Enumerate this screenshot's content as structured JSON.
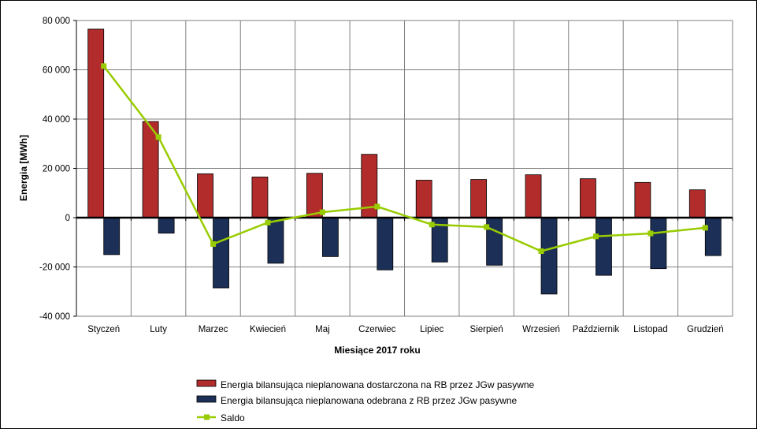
{
  "colors": {
    "delivered": "#B22C2C",
    "received": "#1B2F57",
    "saldo": "#99CC00",
    "grid": "#808080"
  },
  "chart_data": {
    "type": "bar",
    "title": "",
    "xlabel": "Miesiące 2017  roku",
    "ylabel": "Energia  [MWh]",
    "ylim": [
      -40000,
      80000
    ],
    "ytick_values": [
      80000,
      60000,
      40000,
      20000,
      0,
      -20000,
      -40000
    ],
    "ytick_labels": [
      "80 000",
      "60 000",
      "40 000",
      "20 000",
      "0",
      "-20 000",
      "-40 000"
    ],
    "grid": true,
    "legend_position": "bottom",
    "categories": [
      "Styczeń",
      "Luty",
      "Marzec",
      "Kwiecień",
      "Maj",
      "Czerwiec",
      "Lipiec",
      "Sierpień",
      "Wrzesień",
      "Październik",
      "Listopad",
      "Grudzień"
    ],
    "series": [
      {
        "name": "Energia bilansująca nieplanowana dostarczona na RB przez JGw pasywne",
        "type": "bar",
        "color": "#B22C2C",
        "values": [
          76500,
          39000,
          17800,
          16500,
          18000,
          25700,
          15200,
          15500,
          17400,
          15800,
          14300,
          11300
        ]
      },
      {
        "name": "Energia bilansująca nieplanowana odebrana z RB przez JGw pasywne",
        "type": "bar",
        "color": "#1B2F57",
        "values": [
          -15000,
          -6300,
          -28500,
          -18500,
          -15800,
          -21200,
          -18000,
          -19300,
          -31000,
          -23400,
          -20700,
          -15400
        ]
      },
      {
        "name": "Saldo",
        "type": "line",
        "color": "#99CC00",
        "values": [
          61500,
          32700,
          -10700,
          -2000,
          2200,
          4500,
          -2800,
          -3800,
          -13600,
          -7600,
          -6400,
          -4100
        ]
      }
    ]
  }
}
